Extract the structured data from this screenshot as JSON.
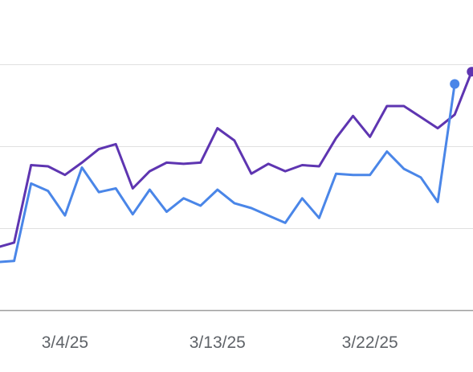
{
  "chart_data": {
    "type": "line",
    "x_axis": {
      "tick_labels": [
        "3/4/25",
        "3/13/25",
        "3/22/25"
      ],
      "tick_index": [
        4,
        13,
        22
      ]
    },
    "ylim": [
      0,
      100
    ],
    "gridlines": [
      33.3,
      66.7,
      100
    ],
    "grid": true,
    "legend": "none",
    "colors": {
      "series_purple": "#5e35b1",
      "series_blue": "#4a86e8",
      "grid": "#e0e0e0",
      "axis": "#9e9e9e"
    },
    "series": [
      {
        "color": "#5e35b1",
        "values": [
          25.5,
          27.5,
          59,
          58.5,
          55,
          60,
          65.5,
          67.5,
          49.5,
          56.5,
          60,
          59.5,
          60,
          74,
          69,
          55.5,
          59.5,
          56.5,
          59,
          58.5,
          70,
          79,
          70.5,
          83,
          83,
          78.5,
          74,
          79.5,
          97
        ]
      },
      {
        "color": "#4a86e8",
        "values": [
          19.5,
          20,
          51.5,
          48.5,
          38.5,
          58,
          48,
          49.5,
          39,
          49,
          40,
          45.5,
          42.5,
          49,
          43.5,
          41.5,
          38.5,
          35.5,
          45.5,
          37.5,
          55.5,
          55,
          55,
          64.5,
          57.5,
          54,
          44,
          92
        ]
      }
    ]
  }
}
